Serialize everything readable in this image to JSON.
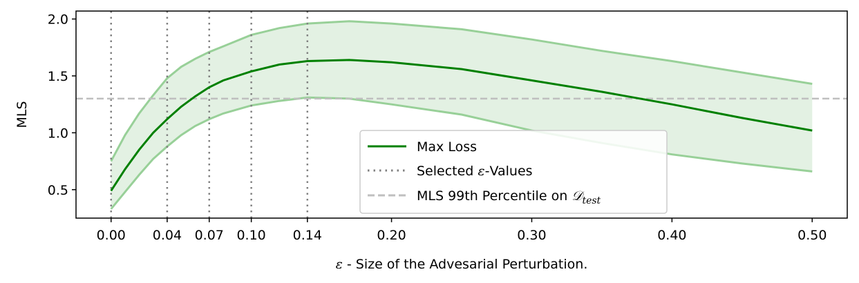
{
  "chart_data": {
    "type": "line",
    "title": "",
    "xlabel_symbol": "ε",
    "xlabel_text": " - Size of the Advesarial Perturbation.",
    "ylabel": "MLS",
    "xlim": [
      -0.025,
      0.525
    ],
    "ylim": [
      0.25,
      2.07
    ],
    "xticks": [
      0.0,
      0.04,
      0.07,
      0.1,
      0.14,
      0.2,
      0.3,
      0.4,
      0.5
    ],
    "xtick_labels": [
      "0.00",
      "0.04",
      "0.07",
      "0.10",
      "0.14",
      "0.20",
      "0.30",
      "0.40",
      "0.50"
    ],
    "yticks": [
      0.5,
      1.0,
      1.5,
      2.0
    ],
    "ytick_labels": [
      "0.5",
      "1.0",
      "1.5",
      "2.0"
    ],
    "grid": false,
    "legend_position": "lower-center",
    "colors": {
      "main_line": "#008000",
      "band_fill": "#008000",
      "band_edge": "#98d098",
      "vlines": "#808080",
      "hline": "#bfbfbf"
    },
    "series": [
      {
        "name": "Max Loss",
        "x": [
          0.0,
          0.01,
          0.02,
          0.03,
          0.04,
          0.05,
          0.06,
          0.07,
          0.08,
          0.1,
          0.12,
          0.14,
          0.17,
          0.2,
          0.25,
          0.3,
          0.35,
          0.4,
          0.45,
          0.5
        ],
        "y": [
          0.49,
          0.68,
          0.85,
          1.0,
          1.12,
          1.23,
          1.32,
          1.4,
          1.46,
          1.54,
          1.6,
          1.63,
          1.64,
          1.62,
          1.56,
          1.46,
          1.36,
          1.25,
          1.13,
          1.02
        ]
      }
    ],
    "band": {
      "x": [
        0.0,
        0.01,
        0.02,
        0.03,
        0.04,
        0.05,
        0.06,
        0.07,
        0.08,
        0.1,
        0.12,
        0.14,
        0.17,
        0.2,
        0.25,
        0.3,
        0.35,
        0.4,
        0.45,
        0.5
      ],
      "upper": [
        0.75,
        0.98,
        1.17,
        1.33,
        1.48,
        1.58,
        1.65,
        1.71,
        1.76,
        1.86,
        1.92,
        1.96,
        1.98,
        1.96,
        1.91,
        1.82,
        1.72,
        1.63,
        1.53,
        1.43
      ],
      "lower": [
        0.33,
        0.48,
        0.63,
        0.77,
        0.88,
        0.98,
        1.06,
        1.12,
        1.17,
        1.24,
        1.28,
        1.31,
        1.3,
        1.25,
        1.16,
        1.02,
        0.91,
        0.81,
        0.73,
        0.66
      ]
    },
    "selected_eps": [
      0.0,
      0.04,
      0.07,
      0.1,
      0.14
    ],
    "percentile_line_y": 1.3,
    "legend": [
      {
        "label": "Max Loss",
        "style": "solid"
      },
      {
        "label_prefix": "Selected ",
        "symbol": "ε",
        "label_suffix": "-Values",
        "style": "dotted"
      },
      {
        "label_prefix": "MLS 99th Percentile on ",
        "symbol": "𝒟",
        "subscript": "test",
        "style": "dashed"
      }
    ]
  }
}
